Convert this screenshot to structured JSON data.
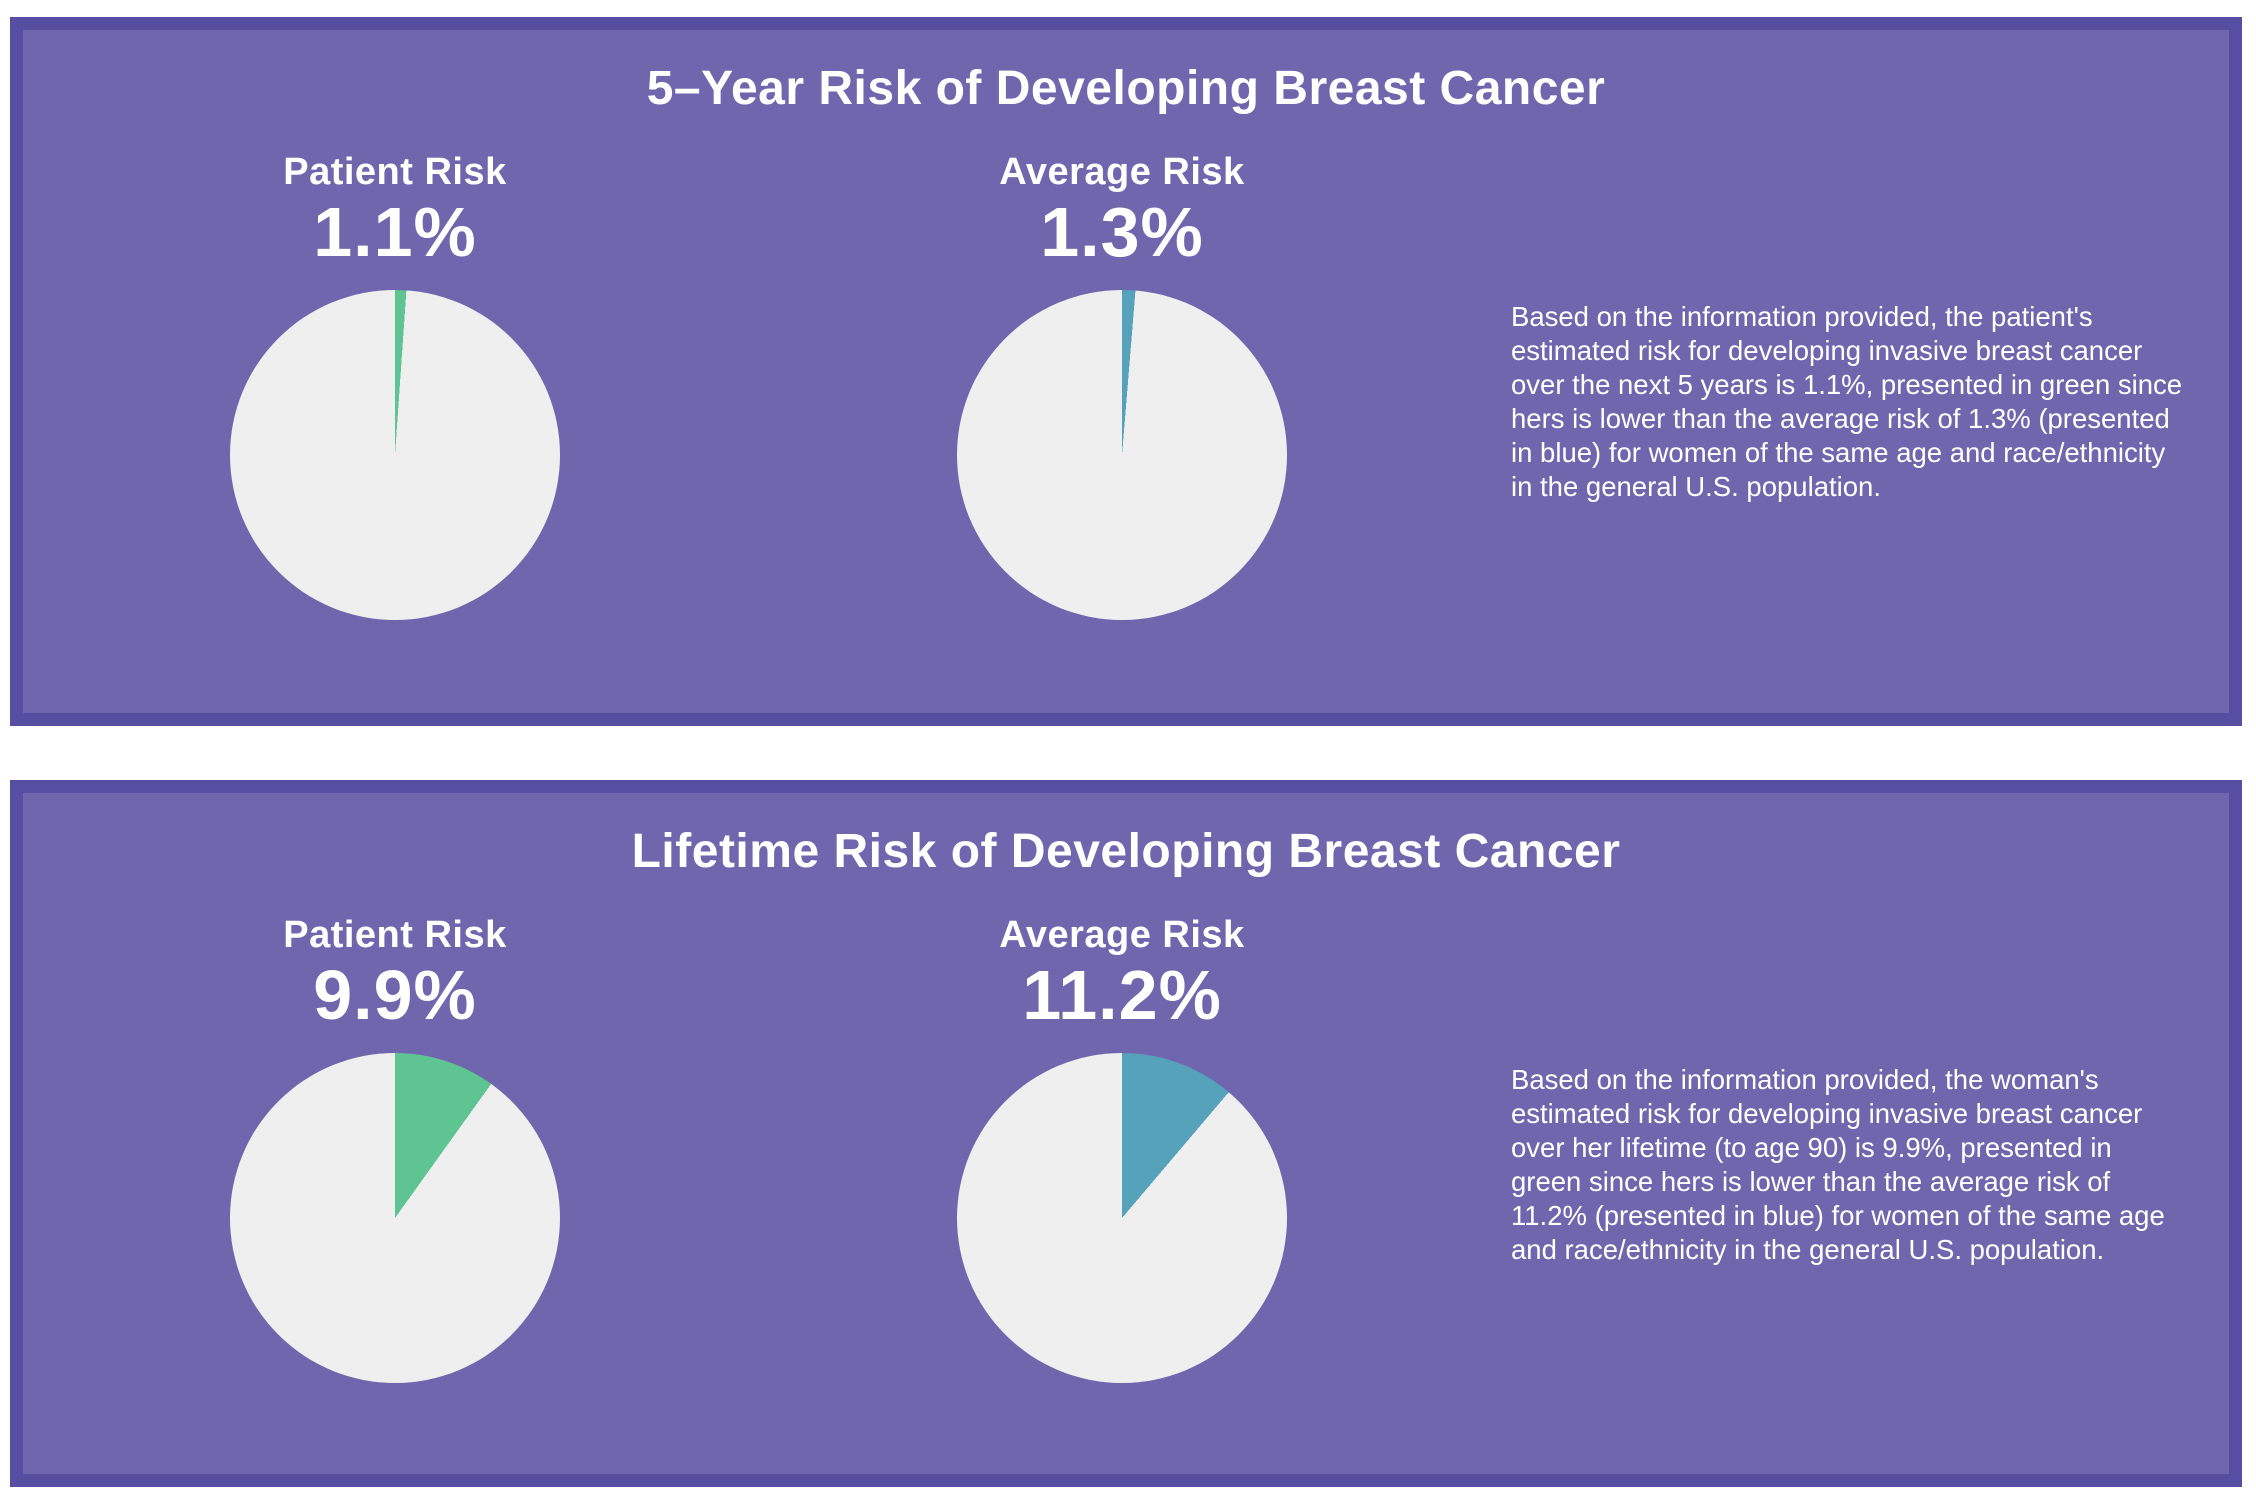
{
  "page": {
    "background": "#ffffff"
  },
  "colors": {
    "panel_background": "#6f66ae",
    "panel_border": "#564fa1",
    "text": "#ffffff",
    "pie_remainder": "#efefef",
    "patient_green": "#5ec492",
    "average_blue": "#55a2ba"
  },
  "chart_data": [
    {
      "type": "pie",
      "title": "5–Year Risk of Developing Breast Cancer",
      "legend_position": "none",
      "pies": [
        {
          "label": "Patient Risk",
          "display_value": "1.1%",
          "value_pct": 1.1,
          "remainder_pct": 98.9,
          "slice_color": "#5ec492",
          "remainder_color": "#efefef",
          "start_angle_deg": 0,
          "direction": "clockwise"
        },
        {
          "label": "Average Risk",
          "display_value": "1.3%",
          "value_pct": 1.3,
          "remainder_pct": 98.7,
          "slice_color": "#55a2ba",
          "remainder_color": "#efefef",
          "start_angle_deg": 0,
          "direction": "clockwise"
        }
      ],
      "note": "Based on the information provided, the patient's estimated risk for developing invasive breast cancer over the next 5 years is 1.1%, presented in green since hers is lower than the average risk of 1.3% (presented in blue) for women of the same age and race/ethnicity in the general U.S. population."
    },
    {
      "type": "pie",
      "title": "Lifetime Risk of Developing Breast Cancer",
      "legend_position": "none",
      "pies": [
        {
          "label": "Patient Risk",
          "display_value": "9.9%",
          "value_pct": 9.9,
          "remainder_pct": 90.1,
          "slice_color": "#5ec492",
          "remainder_color": "#efefef",
          "start_angle_deg": 0,
          "direction": "clockwise"
        },
        {
          "label": "Average Risk",
          "display_value": "11.2%",
          "value_pct": 11.2,
          "remainder_pct": 88.8,
          "slice_color": "#55a2ba",
          "remainder_color": "#efefef",
          "start_angle_deg": 0,
          "direction": "clockwise"
        }
      ],
      "note": "Based on the information provided, the woman's estimated risk for developing invasive breast cancer over her lifetime (to age 90) is 9.9%, presented in green since hers is lower than the average risk of 11.2% (presented in blue) for women of the same age and race/ethnicity in the general U.S. population."
    }
  ]
}
